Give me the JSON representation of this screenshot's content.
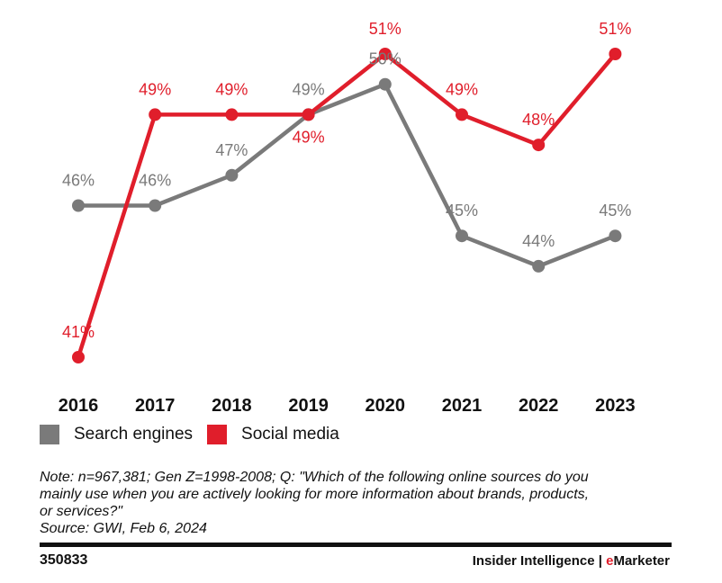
{
  "chart_data": {
    "type": "line",
    "title": "",
    "xlabel": "",
    "ylabel": "",
    "ylim": [
      40,
      52
    ],
    "categories": [
      "2016",
      "2017",
      "2018",
      "2019",
      "2020",
      "2021",
      "2022",
      "2023"
    ],
    "series": [
      {
        "name": "Search engines",
        "color": "#7a7a7a",
        "values": [
          46,
          46,
          47,
          49,
          50,
          45,
          44,
          45
        ],
        "labels": [
          "46%",
          "46%",
          "47%",
          "49%",
          "50%",
          "45%",
          "44%",
          "45%"
        ]
      },
      {
        "name": "Social media",
        "color": "#e01e2b",
        "values": [
          41,
          49,
          49,
          49,
          51,
          49,
          48,
          51
        ],
        "labels": [
          "41%",
          "49%",
          "49%",
          "49%",
          "51%",
          "49%",
          "48%",
          "51%"
        ]
      }
    ],
    "legend_position": "bottom-left",
    "grid": false
  },
  "legend": {
    "search_label": "Search engines",
    "social_label": "Social media"
  },
  "note": {
    "line1": "Note: n=967,381; Gen Z=1998-2008; Q: \"Which of the following online sources do you",
    "line2": "mainly use when you are actively looking for more information about brands, products,",
    "line3": "or services?\"",
    "source": "Source: GWI, Feb 6, 2024"
  },
  "footer": {
    "chart_id": "350833",
    "brand_left": "Insider Intelligence",
    "brand_sep": " | ",
    "brand_e": "e",
    "brand_rest": "Marketer"
  }
}
